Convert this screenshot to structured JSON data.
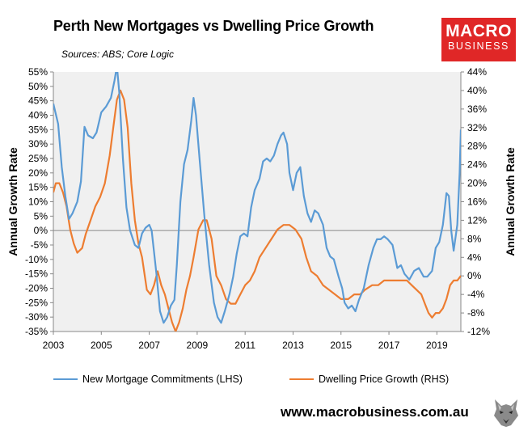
{
  "header": {
    "title": "Perth New Mortgages vs Dwelling Price Growth",
    "subtitle": "Sources: ABS; Core Logic",
    "logo_line1": "MACRO",
    "logo_line2": "BUSINESS"
  },
  "footer": {
    "url": "www.macrobusiness.com.au"
  },
  "colors": {
    "lhs": "#5b9bd5",
    "rhs": "#ed7d31",
    "plot_bg": "#f0f0f0",
    "brand": "#e02727"
  },
  "icons": {
    "logo": "wolf-logo-icon"
  },
  "chart_data": {
    "type": "line",
    "title": "Perth New Mortgages vs Dwelling Price Growth",
    "ylabel_left": "Annual Growth Rate",
    "ylabel_right": "Annual Growth Rate",
    "xlim": [
      2003,
      2020
    ],
    "ylim_left": [
      -35,
      55
    ],
    "ylim_right": [
      -12,
      44
    ],
    "x_ticks": [
      2003,
      2005,
      2007,
      2009,
      2011,
      2013,
      2015,
      2017,
      2019
    ],
    "x_tick_labels": [
      "2003",
      "2005",
      "2007",
      "2009",
      "2011",
      "2013",
      "2015",
      "2017",
      "2019"
    ],
    "y_ticks_left": [
      -35,
      -30,
      -25,
      -20,
      -15,
      -10,
      -5,
      0,
      5,
      10,
      15,
      20,
      25,
      30,
      35,
      40,
      45,
      50,
      55
    ],
    "y_tick_labels_left": [
      "-35%",
      "-30%",
      "-25%",
      "-20%",
      "-15%",
      "-10%",
      "-5%",
      "0%",
      "5%",
      "10%",
      "15%",
      "20%",
      "25%",
      "30%",
      "35%",
      "40%",
      "45%",
      "50%",
      "55%"
    ],
    "y_ticks_right": [
      -12,
      -8,
      -4,
      0,
      4,
      8,
      12,
      16,
      20,
      24,
      28,
      32,
      36,
      40,
      44
    ],
    "y_tick_labels_right": [
      "-12%",
      "-8%",
      "-4%",
      "0%",
      "4%",
      "8%",
      "12%",
      "16%",
      "20%",
      "24%",
      "28%",
      "32%",
      "36%",
      "40%",
      "44%"
    ],
    "grid": false,
    "legend_position": "bottom",
    "series": [
      {
        "name": "New Mortgage Commitments (LHS)",
        "axis": "left",
        "color": "#5b9bd5",
        "points": [
          [
            2003.0,
            44
          ],
          [
            2003.2,
            37
          ],
          [
            2003.35,
            22
          ],
          [
            2003.5,
            12
          ],
          [
            2003.65,
            4
          ],
          [
            2003.8,
            6
          ],
          [
            2004.0,
            10
          ],
          [
            2004.15,
            17
          ],
          [
            2004.3,
            36
          ],
          [
            2004.45,
            33
          ],
          [
            2004.65,
            32
          ],
          [
            2004.8,
            34
          ],
          [
            2005.0,
            41
          ],
          [
            2005.2,
            43
          ],
          [
            2005.4,
            46
          ],
          [
            2005.55,
            52
          ],
          [
            2005.65,
            57
          ],
          [
            2005.75,
            48
          ],
          [
            2005.9,
            25
          ],
          [
            2006.05,
            8
          ],
          [
            2006.2,
            0
          ],
          [
            2006.4,
            -5
          ],
          [
            2006.55,
            -6
          ],
          [
            2006.7,
            -1
          ],
          [
            2006.85,
            1
          ],
          [
            2007.0,
            2
          ],
          [
            2007.1,
            0
          ],
          [
            2007.3,
            -15
          ],
          [
            2007.45,
            -28
          ],
          [
            2007.6,
            -32
          ],
          [
            2007.75,
            -30
          ],
          [
            2007.9,
            -26
          ],
          [
            2008.05,
            -24
          ],
          [
            2008.15,
            -12
          ],
          [
            2008.3,
            10
          ],
          [
            2008.45,
            23
          ],
          [
            2008.6,
            28
          ],
          [
            2008.75,
            38
          ],
          [
            2008.85,
            46
          ],
          [
            2008.95,
            40
          ],
          [
            2009.1,
            25
          ],
          [
            2009.3,
            5
          ],
          [
            2009.5,
            -12
          ],
          [
            2009.7,
            -25
          ],
          [
            2009.85,
            -30
          ],
          [
            2010.0,
            -32
          ],
          [
            2010.15,
            -28
          ],
          [
            2010.35,
            -22
          ],
          [
            2010.5,
            -16
          ],
          [
            2010.65,
            -8
          ],
          [
            2010.8,
            -2
          ],
          [
            2010.95,
            -1
          ],
          [
            2011.1,
            -2
          ],
          [
            2011.25,
            8
          ],
          [
            2011.4,
            14
          ],
          [
            2011.6,
            18
          ],
          [
            2011.75,
            24
          ],
          [
            2011.9,
            25
          ],
          [
            2012.05,
            24
          ],
          [
            2012.2,
            26
          ],
          [
            2012.35,
            30
          ],
          [
            2012.5,
            33
          ],
          [
            2012.6,
            34
          ],
          [
            2012.75,
            30
          ],
          [
            2012.85,
            20
          ],
          [
            2013.0,
            14
          ],
          [
            2013.15,
            20
          ],
          [
            2013.3,
            22
          ],
          [
            2013.45,
            12
          ],
          [
            2013.6,
            6
          ],
          [
            2013.75,
            3
          ],
          [
            2013.9,
            7
          ],
          [
            2014.05,
            6
          ],
          [
            2014.25,
            2
          ],
          [
            2014.4,
            -6
          ],
          [
            2014.55,
            -9
          ],
          [
            2014.7,
            -10
          ],
          [
            2014.9,
            -16
          ],
          [
            2015.05,
            -20
          ],
          [
            2015.15,
            -25
          ],
          [
            2015.3,
            -27
          ],
          [
            2015.45,
            -26
          ],
          [
            2015.6,
            -28
          ],
          [
            2015.75,
            -24
          ],
          [
            2015.95,
            -20
          ],
          [
            2016.15,
            -12
          ],
          [
            2016.35,
            -6
          ],
          [
            2016.5,
            -3
          ],
          [
            2016.65,
            -3
          ],
          [
            2016.8,
            -2
          ],
          [
            2016.95,
            -3
          ],
          [
            2017.15,
            -5
          ],
          [
            2017.35,
            -13
          ],
          [
            2017.5,
            -12
          ],
          [
            2017.65,
            -15
          ],
          [
            2017.85,
            -17
          ],
          [
            2018.05,
            -14
          ],
          [
            2018.25,
            -13
          ],
          [
            2018.45,
            -16
          ],
          [
            2018.6,
            -16
          ],
          [
            2018.8,
            -14
          ],
          [
            2018.95,
            -6
          ],
          [
            2019.1,
            -4
          ],
          [
            2019.25,
            2
          ],
          [
            2019.4,
            13
          ],
          [
            2019.5,
            12
          ],
          [
            2019.6,
            0
          ],
          [
            2019.7,
            -7
          ],
          [
            2019.85,
            2
          ],
          [
            2019.95,
            20
          ],
          [
            2020.0,
            35
          ]
        ]
      },
      {
        "name": "Dwelling Price Growth (RHS)",
        "axis": "right",
        "color": "#ed7d31",
        "points": [
          [
            2003.0,
            18
          ],
          [
            2003.1,
            20
          ],
          [
            2003.25,
            20
          ],
          [
            2003.4,
            18
          ],
          [
            2003.55,
            15
          ],
          [
            2003.7,
            10
          ],
          [
            2003.85,
            7
          ],
          [
            2004.0,
            5
          ],
          [
            2004.2,
            6
          ],
          [
            2004.35,
            9
          ],
          [
            2004.55,
            12
          ],
          [
            2004.75,
            15
          ],
          [
            2004.95,
            17
          ],
          [
            2005.15,
            20
          ],
          [
            2005.35,
            26
          ],
          [
            2005.5,
            32
          ],
          [
            2005.65,
            38
          ],
          [
            2005.8,
            40
          ],
          [
            2005.95,
            38
          ],
          [
            2006.1,
            32
          ],
          [
            2006.25,
            20
          ],
          [
            2006.4,
            12
          ],
          [
            2006.55,
            7
          ],
          [
            2006.7,
            4
          ],
          [
            2006.9,
            -3
          ],
          [
            2007.05,
            -4
          ],
          [
            2007.2,
            -2
          ],
          [
            2007.35,
            1
          ],
          [
            2007.5,
            -2
          ],
          [
            2007.65,
            -4
          ],
          [
            2007.8,
            -7
          ],
          [
            2007.95,
            -10
          ],
          [
            2008.1,
            -12
          ],
          [
            2008.25,
            -10
          ],
          [
            2008.4,
            -7
          ],
          [
            2008.55,
            -3
          ],
          [
            2008.7,
            0
          ],
          [
            2008.85,
            4
          ],
          [
            2009.05,
            10
          ],
          [
            2009.25,
            12
          ],
          [
            2009.4,
            12
          ],
          [
            2009.6,
            8
          ],
          [
            2009.8,
            0
          ],
          [
            2010.0,
            -2
          ],
          [
            2010.2,
            -5
          ],
          [
            2010.4,
            -6
          ],
          [
            2010.6,
            -6
          ],
          [
            2010.8,
            -4
          ],
          [
            2011.0,
            -2
          ],
          [
            2011.2,
            -1
          ],
          [
            2011.4,
            1
          ],
          [
            2011.6,
            4
          ],
          [
            2011.85,
            6
          ],
          [
            2012.1,
            8
          ],
          [
            2012.35,
            10
          ],
          [
            2012.6,
            11
          ],
          [
            2012.85,
            11
          ],
          [
            2013.1,
            10
          ],
          [
            2013.35,
            8
          ],
          [
            2013.55,
            4
          ],
          [
            2013.75,
            1
          ],
          [
            2014.0,
            0
          ],
          [
            2014.25,
            -2
          ],
          [
            2014.5,
            -3
          ],
          [
            2014.75,
            -4
          ],
          [
            2015.0,
            -5
          ],
          [
            2015.3,
            -5
          ],
          [
            2015.55,
            -4
          ],
          [
            2015.8,
            -4
          ],
          [
            2016.0,
            -3
          ],
          [
            2016.3,
            -2
          ],
          [
            2016.55,
            -2
          ],
          [
            2016.8,
            -1
          ],
          [
            2017.1,
            -1
          ],
          [
            2017.35,
            -1
          ],
          [
            2017.55,
            -1
          ],
          [
            2017.75,
            -1
          ],
          [
            2017.95,
            -2
          ],
          [
            2018.15,
            -3
          ],
          [
            2018.35,
            -4
          ],
          [
            2018.5,
            -6
          ],
          [
            2018.65,
            -8
          ],
          [
            2018.8,
            -9
          ],
          [
            2018.95,
            -8
          ],
          [
            2019.1,
            -8
          ],
          [
            2019.25,
            -7
          ],
          [
            2019.4,
            -5
          ],
          [
            2019.55,
            -2
          ],
          [
            2019.7,
            -1
          ],
          [
            2019.85,
            -1
          ],
          [
            2020.0,
            0
          ]
        ]
      }
    ]
  }
}
